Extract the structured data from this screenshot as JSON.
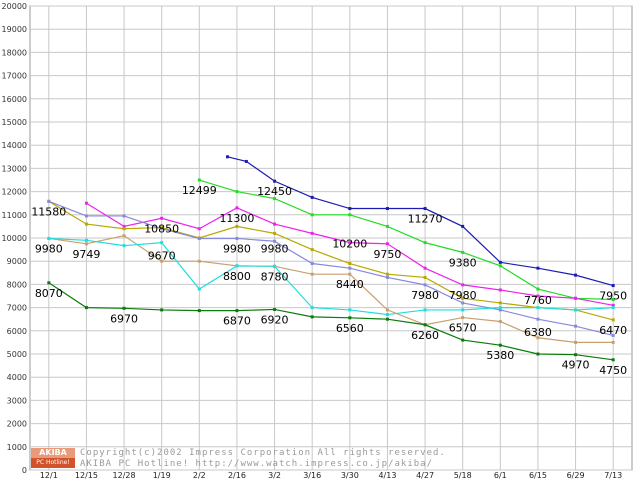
{
  "chart_data": {
    "type": "line",
    "title": "",
    "xlabel": "",
    "ylabel": "",
    "ylim": [
      0,
      20000
    ],
    "grid": true,
    "y_ticks": [
      0,
      1000,
      2000,
      3000,
      4000,
      5000,
      6000,
      7000,
      8000,
      9000,
      10000,
      11000,
      12000,
      13000,
      14000,
      15000,
      16000,
      17000,
      18000,
      19000,
      20000
    ],
    "x_ticks": [
      "12/1",
      "12/15",
      "12/28",
      "1/19",
      "2/2",
      "2/16",
      "3/2",
      "3/16",
      "3/30",
      "4/13",
      "4/27",
      "5/18",
      "6/1",
      "6/15",
      "6/29",
      "7/13"
    ],
    "series": [
      {
        "color": "#1c1cb4",
        "values": [
          null,
          null,
          null,
          null,
          null,
          [
            13500,
            13300
          ],
          12450,
          11750,
          11270,
          11270,
          11270,
          10500,
          8950,
          8700,
          8400,
          7950
        ]
      },
      {
        "color": "#22dd22",
        "values": [
          null,
          null,
          null,
          null,
          12499,
          12000,
          11700,
          11000,
          11000,
          10500,
          9800,
          9380,
          8800,
          7800,
          7400,
          7350
        ]
      },
      {
        "color": "#ee22ee",
        "values": [
          null,
          11500,
          10500,
          10850,
          10400,
          11300,
          10600,
          10200,
          9800,
          9750,
          8700,
          7980,
          7760,
          7500,
          7400,
          7100
        ]
      },
      {
        "color": "#b8a800",
        "values": [
          11580,
          10600,
          10400,
          10450,
          10000,
          10500,
          10200,
          9500,
          8900,
          8440,
          8300,
          7400,
          7200,
          7000,
          6900,
          6470
        ]
      },
      {
        "color": "#8888dd",
        "values": [
          11580,
          10950,
          10950,
          10400,
          9980,
          9980,
          9860,
          8900,
          8700,
          8300,
          7980,
          7200,
          6900,
          6500,
          6200,
          5800
        ]
      },
      {
        "color": "#c8a070",
        "values": [
          9980,
          9749,
          10100,
          9000,
          9000,
          8800,
          8780,
          8440,
          8440,
          6900,
          6260,
          6570,
          6400,
          5700,
          5500,
          5500
        ]
      },
      {
        "color": "#22dddd",
        "values": [
          9980,
          9900,
          9670,
          9800,
          7800,
          8800,
          8780,
          7000,
          6900,
          6700,
          6900,
          6900,
          7000,
          7000,
          6900,
          7000
        ]
      },
      {
        "color": "#0a7a0a",
        "values": [
          8070,
          7000,
          6970,
          6900,
          6870,
          6870,
          6920,
          6600,
          6560,
          6500,
          6260,
          5600,
          5380,
          5000,
          4970,
          4750
        ]
      }
    ],
    "annotations": [
      {
        "text": "11580",
        "x": 0,
        "y": 11580
      },
      {
        "text": "9980",
        "x": 0,
        "y": 9980
      },
      {
        "text": "8070",
        "x": 0,
        "y": 8070
      },
      {
        "text": "9749",
        "x": 1,
        "y": 9749
      },
      {
        "text": "6970",
        "x": 2,
        "y": 6970
      },
      {
        "text": "10850",
        "x": 3,
        "y": 10850
      },
      {
        "text": "9670",
        "x": 3,
        "y": 9670
      },
      {
        "text": "12499",
        "x": 4,
        "y": 12499
      },
      {
        "text": "11300",
        "x": 5,
        "y": 11300
      },
      {
        "text": "9980",
        "x": 5,
        "y": 9980
      },
      {
        "text": "8800",
        "x": 5,
        "y": 8800
      },
      {
        "text": "6870",
        "x": 5,
        "y": 6870
      },
      {
        "text": "12450",
        "x": 6,
        "y": 12450
      },
      {
        "text": "9980",
        "x": 6,
        "y": 9980
      },
      {
        "text": "8780",
        "x": 6,
        "y": 8780
      },
      {
        "text": "6920",
        "x": 6,
        "y": 6920
      },
      {
        "text": "10200",
        "x": 8,
        "y": 10200
      },
      {
        "text": "8440",
        "x": 8,
        "y": 8440
      },
      {
        "text": "6560",
        "x": 8,
        "y": 6560
      },
      {
        "text": "9750",
        "x": 9,
        "y": 9750
      },
      {
        "text": "11270",
        "x": 10,
        "y": 11270
      },
      {
        "text": "7980",
        "x": 10,
        "y": 7980
      },
      {
        "text": "6260",
        "x": 10,
        "y": 6260
      },
      {
        "text": "9380",
        "x": 11,
        "y": 9380
      },
      {
        "text": "7980",
        "x": 11,
        "y": 7980
      },
      {
        "text": "6570",
        "x": 11,
        "y": 6570
      },
      {
        "text": "5380",
        "x": 12,
        "y": 5380
      },
      {
        "text": "7760",
        "x": 13,
        "y": 7760
      },
      {
        "text": "6380",
        "x": 13,
        "y": 6380
      },
      {
        "text": "4970",
        "x": 14,
        "y": 4970
      },
      {
        "text": "7950",
        "x": 15,
        "y": 7950
      },
      {
        "text": "6470",
        "x": 15,
        "y": 6470
      },
      {
        "text": "4750",
        "x": 15,
        "y": 4750
      }
    ]
  },
  "logo": {
    "top": "AKIBA",
    "bottom": "PC Hotline!"
  },
  "credit": {
    "line1": "Copyright(c)2002 Impress Corporation All rights reserved.",
    "line2": "AKIBA PC Hotline!  http://www.watch.impress.co.jp/akiba/"
  }
}
